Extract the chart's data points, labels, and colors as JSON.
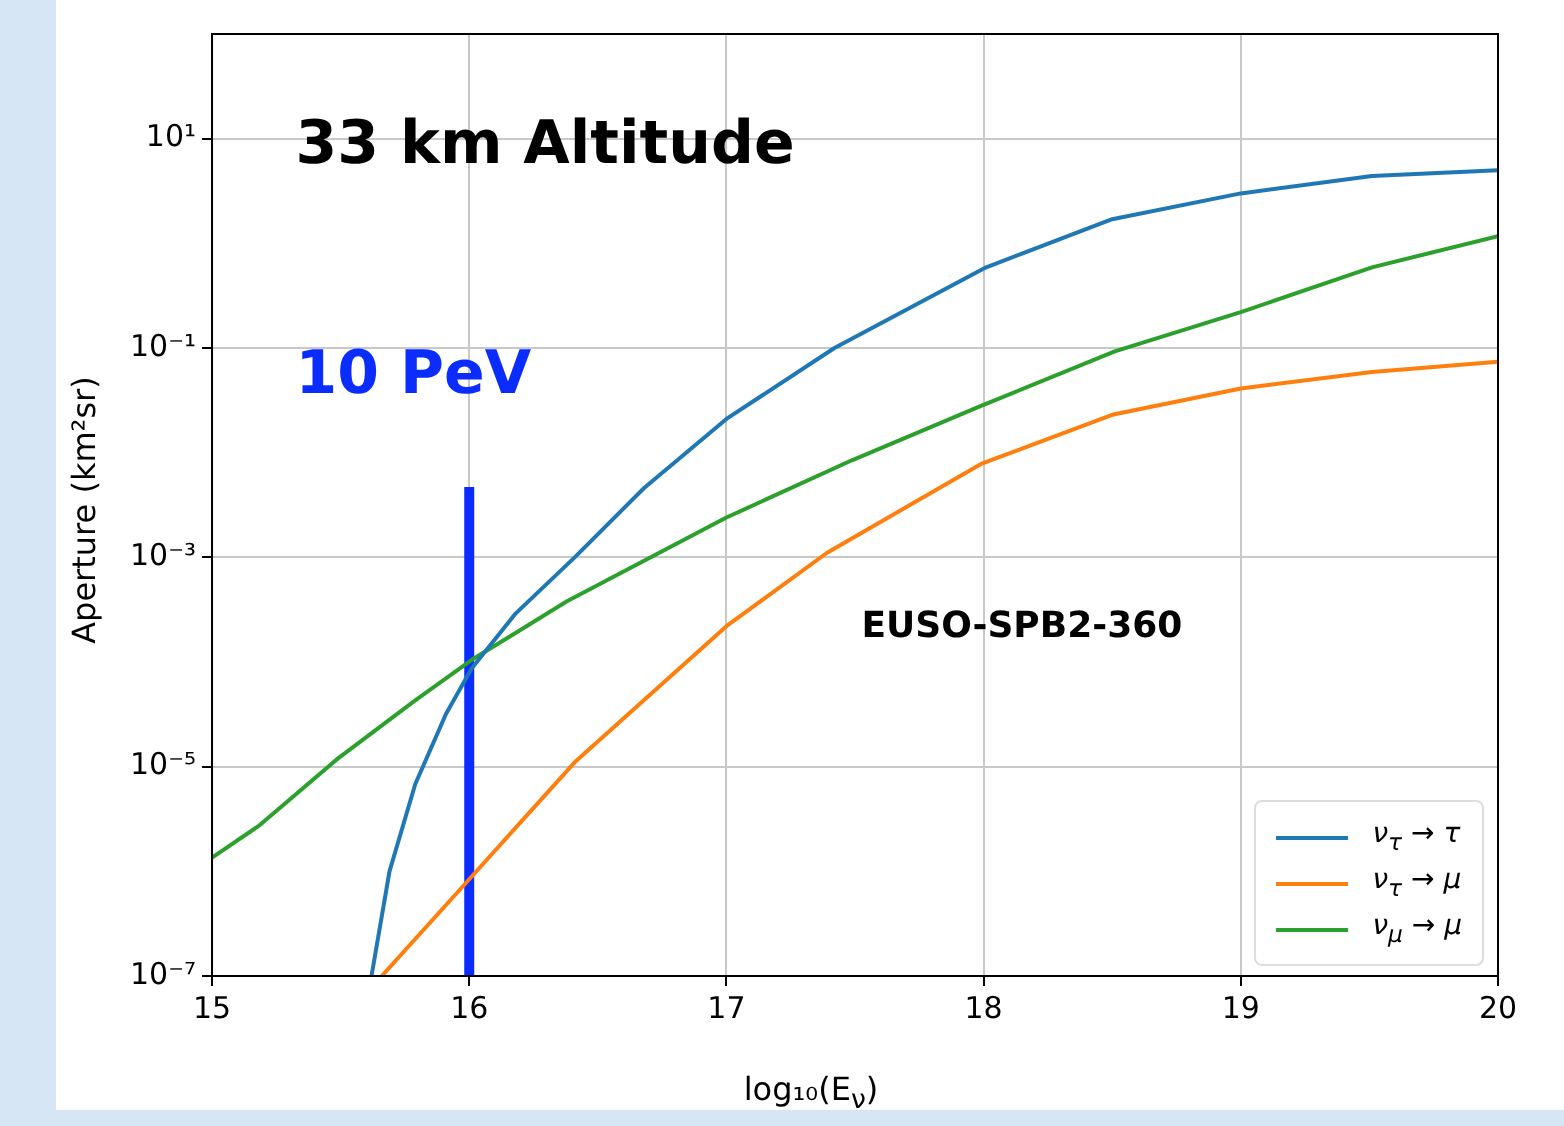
{
  "chart_data": {
    "type": "line",
    "xlabel": "log₁₀(E$_{ν}$)",
    "ylabel": "Aperture (km²sr)",
    "log": "y",
    "grid": true,
    "legend": "bottom right",
    "marker": "none",
    "line_style": "solid",
    "xlim": [
      15,
      20
    ],
    "xticks": [
      15,
      16,
      17,
      18,
      19,
      20
    ],
    "ylim": [
      1e-07,
      100
    ],
    "yticks": [
      {
        "value": 1e-07,
        "label": "10⁻⁷"
      },
      {
        "value": 1e-05,
        "label": "10⁻⁵"
      },
      {
        "value": 0.001,
        "label": "10⁻³"
      },
      {
        "value": 0.1,
        "label": "10⁻¹"
      },
      {
        "value": 10,
        "label": "10¹"
      }
    ],
    "annotations": [
      "33 km Altitude",
      "10 PeV",
      "EUSO-SPB2-360"
    ],
    "series": [
      {
        "name": "ν$_{τ}$ → τ",
        "color": "#1f77b4",
        "x": [
          15.62,
          15.69,
          15.79,
          15.91,
          16.01,
          16.18,
          16.41,
          16.68,
          17.0,
          17.42,
          18.01,
          18.5,
          19.0,
          19.51,
          20
        ],
        "values": [
          1e-07,
          1e-06,
          6.8e-06,
          3.2e-05,
          8.7e-05,
          0.00029,
          0.001,
          0.0046,
          0.021,
          0.1,
          0.59,
          1.7,
          3.0,
          4.4,
          5.0
        ]
      },
      {
        "name": "ν$_{τ}$ → μ",
        "color": "#ff7f0e",
        "x": [
          15.66,
          15.98,
          16.41,
          17.0,
          17.39,
          17.99,
          18.5,
          19.0,
          19.51,
          20
        ],
        "values": [
          1e-07,
          7.4e-07,
          1.1e-05,
          0.00022,
          0.0011,
          0.0078,
          0.023,
          0.041,
          0.059,
          0.074
        ]
      },
      {
        "name": "ν$_{μ}$ → μ",
        "color": "#2ca02c",
        "x": [
          15,
          15.18,
          15.49,
          15.79,
          16.01,
          16.38,
          17.0,
          17.49,
          17.99,
          18.51,
          19.0,
          19.51,
          20
        ],
        "values": [
          1.35e-06,
          2.7e-06,
          1.2e-05,
          4.3e-05,
          0.000105,
          0.00038,
          0.0024,
          0.0085,
          0.028,
          0.093,
          0.22,
          0.59,
          1.17
        ]
      },
      {
        "color": "#0a2cff",
        "x": [
          16,
          16
        ],
        "values": [
          1e-07,
          0.0047
        ]
      }
    ]
  }
}
